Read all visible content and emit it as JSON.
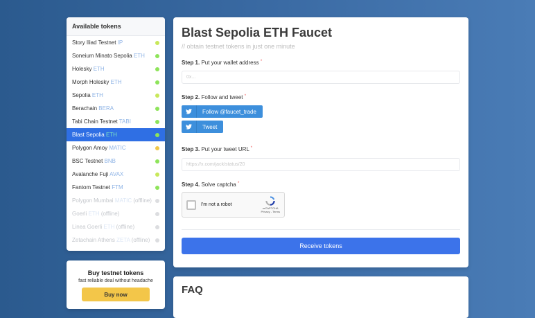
{
  "sidebar": {
    "title": "Available tokens",
    "items": [
      {
        "name": "Story Iliad Testnet",
        "symbol": "IP",
        "status": "",
        "color": "#c8e85a"
      },
      {
        "name": "Soneium Minato Sepolia",
        "symbol": "ETH",
        "status": "",
        "color": "#8ee45a"
      },
      {
        "name": "Holesky",
        "symbol": "ETH",
        "status": "",
        "color": "#8ee45a"
      },
      {
        "name": "Morph Holesky",
        "symbol": "ETH",
        "status": "",
        "color": "#8ee45a"
      },
      {
        "name": "Sepolia",
        "symbol": "ETH",
        "status": "",
        "color": "#c8e85a"
      },
      {
        "name": "Berachain",
        "symbol": "BERA",
        "status": "",
        "color": "#8ee45a"
      },
      {
        "name": "Tabi Chain Testnet",
        "symbol": "TABI",
        "status": "",
        "color": "#8ee45a"
      },
      {
        "name": "Blast Sepolia",
        "symbol": "ETH",
        "status": "",
        "color": "#8ee45a",
        "active": true
      },
      {
        "name": "Polygon Amoy",
        "symbol": "MATIC",
        "status": "",
        "color": "#f0c84a"
      },
      {
        "name": "BSC Testnet",
        "symbol": "BNB",
        "status": "",
        "color": "#8ee45a"
      },
      {
        "name": "Avalanche Fuji",
        "symbol": "AVAX",
        "status": "",
        "color": "#c8e85a"
      },
      {
        "name": "Fantom Testnet",
        "symbol": "FTM",
        "status": "",
        "color": "#8ee45a"
      },
      {
        "name": "Polygon Mumbai",
        "symbol": "MATIC",
        "status": "(offline)",
        "color": "#dcdde0"
      },
      {
        "name": "Goerli",
        "symbol": "ETH",
        "status": "(offline)",
        "color": "#dcdde0"
      },
      {
        "name": "Linea Goerli",
        "symbol": "ETH",
        "status": "(offline)",
        "color": "#dcdde0"
      },
      {
        "name": "Zetachain Athens",
        "symbol": "ZETA",
        "status": "(offline)",
        "color": "#dcdde0"
      }
    ]
  },
  "buy": {
    "title": "Buy testnet tokens",
    "subtitle": "fast reliable deal without headache",
    "button": "Buy now"
  },
  "main": {
    "title": "Blast Sepolia ETH Faucet",
    "subtitle": "// obtain testnet tokens in just one minute",
    "step1": {
      "num": "Step 1.",
      "text": "Put your wallet address",
      "placeholder": "0x..."
    },
    "step2": {
      "num": "Step 2.",
      "text": "Follow and tweet",
      "follow": "Follow @faucet_trade",
      "tweet": "Tweet"
    },
    "step3": {
      "num": "Step 3.",
      "text": "Put your tweet URL",
      "placeholder": "https://x.com/jack/status/20"
    },
    "step4": {
      "num": "Step 4.",
      "text": "Solve captcha",
      "captcha_label": "I'm not a robot",
      "captcha_brand": "reCAPTCHA",
      "captcha_links": "Privacy - Terms"
    },
    "required": "*",
    "submit": "Receive tokens"
  },
  "faq": {
    "title": "FAQ"
  }
}
